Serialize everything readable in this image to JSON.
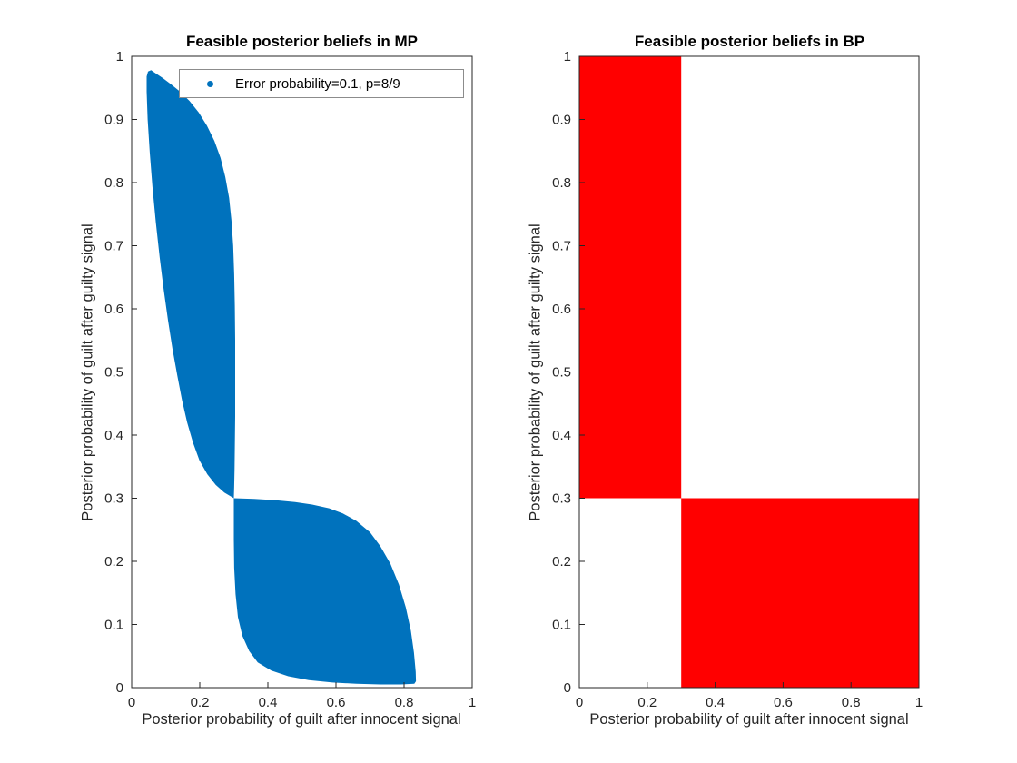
{
  "figure": {
    "background": "#ffffff"
  },
  "style": {
    "axis_color": "#262626",
    "title_color": "#000000",
    "mp_region_color": "#0072BD",
    "bp_region_color": "#FF0000"
  },
  "chart_data": [
    {
      "id": "mp",
      "type": "area",
      "title": "Feasible posterior beliefs in MP",
      "xlabel": "Posterior probability of guilt after innocent signal",
      "ylabel": "Posterior probability of guilt after guilty signal",
      "xlim": [
        0,
        1
      ],
      "ylim": [
        0,
        1
      ],
      "grid": false,
      "legend": {
        "position": "north-inside",
        "entries": [
          {
            "label": "Error probability=0.1, p=8/9",
            "marker": "dot",
            "color": "#0072BD"
          }
        ]
      },
      "xticks": {
        "values": [
          0,
          0.2,
          0.4,
          0.6,
          0.8,
          1
        ],
        "labels": [
          "0",
          "0.2",
          "0.4",
          "0.6",
          "0.8",
          "1"
        ]
      },
      "yticks": {
        "values": [
          0,
          0.1,
          0.2,
          0.3,
          0.4,
          0.5,
          0.6,
          0.7,
          0.8,
          0.9,
          1
        ],
        "labels": [
          "0",
          "0.1",
          "0.2",
          "0.3",
          "0.4",
          "0.5",
          "0.6",
          "0.7",
          "0.8",
          "0.9",
          "1"
        ]
      },
      "region_color": "#0072BD",
      "region_description": "Filled feasible set of posterior pairs; pinch point at (0.3, 0.3); upper lobe spans x 0.045-0.30 / y 0.30-0.98; lower lobe spans x 0.30-0.835 / y 0-0.30",
      "region_boundary": [
        [
          0.3,
          0.3
        ],
        [
          0.36,
          0.299
        ],
        [
          0.42,
          0.297
        ],
        [
          0.48,
          0.294
        ],
        [
          0.53,
          0.29
        ],
        [
          0.58,
          0.284
        ],
        [
          0.62,
          0.276
        ],
        [
          0.66,
          0.264
        ],
        [
          0.7,
          0.246
        ],
        [
          0.73,
          0.224
        ],
        [
          0.76,
          0.196
        ],
        [
          0.785,
          0.163
        ],
        [
          0.805,
          0.127
        ],
        [
          0.82,
          0.09
        ],
        [
          0.829,
          0.055
        ],
        [
          0.834,
          0.025
        ],
        [
          0.835,
          0.01
        ],
        [
          0.83,
          0.006
        ],
        [
          0.79,
          0.005
        ],
        [
          0.73,
          0.005
        ],
        [
          0.66,
          0.006
        ],
        [
          0.59,
          0.008
        ],
        [
          0.52,
          0.012
        ],
        [
          0.46,
          0.018
        ],
        [
          0.41,
          0.027
        ],
        [
          0.37,
          0.04
        ],
        [
          0.345,
          0.058
        ],
        [
          0.325,
          0.082
        ],
        [
          0.312,
          0.112
        ],
        [
          0.305,
          0.148
        ],
        [
          0.301,
          0.19
        ],
        [
          0.3,
          0.235
        ],
        [
          0.3,
          0.27
        ],
        [
          0.3,
          0.3
        ],
        [
          0.272,
          0.309
        ],
        [
          0.247,
          0.321
        ],
        [
          0.222,
          0.338
        ],
        [
          0.199,
          0.36
        ],
        [
          0.18,
          0.388
        ],
        [
          0.163,
          0.42
        ],
        [
          0.148,
          0.455
        ],
        [
          0.134,
          0.494
        ],
        [
          0.12,
          0.536
        ],
        [
          0.107,
          0.581
        ],
        [
          0.094,
          0.63
        ],
        [
          0.082,
          0.682
        ],
        [
          0.071,
          0.737
        ],
        [
          0.061,
          0.793
        ],
        [
          0.053,
          0.848
        ],
        [
          0.047,
          0.9
        ],
        [
          0.044,
          0.944
        ],
        [
          0.044,
          0.968
        ],
        [
          0.048,
          0.976
        ],
        [
          0.057,
          0.978
        ],
        [
          0.068,
          0.974
        ],
        [
          0.09,
          0.966
        ],
        [
          0.115,
          0.956
        ],
        [
          0.142,
          0.944
        ],
        [
          0.17,
          0.929
        ],
        [
          0.197,
          0.911
        ],
        [
          0.221,
          0.89
        ],
        [
          0.243,
          0.866
        ],
        [
          0.261,
          0.839
        ],
        [
          0.275,
          0.809
        ],
        [
          0.286,
          0.776
        ],
        [
          0.293,
          0.74
        ],
        [
          0.298,
          0.7
        ],
        [
          0.301,
          0.655
        ],
        [
          0.303,
          0.605
        ],
        [
          0.304,
          0.55
        ],
        [
          0.304,
          0.49
        ],
        [
          0.304,
          0.43
        ],
        [
          0.303,
          0.38
        ],
        [
          0.302,
          0.345
        ],
        [
          0.301,
          0.318
        ]
      ]
    },
    {
      "id": "bp",
      "type": "area",
      "title": "Feasible posterior beliefs in BP",
      "xlabel": "Posterior probability of guilt after innocent signal",
      "ylabel": "Posterior probability of guilt after guilty signal",
      "xlim": [
        0,
        1
      ],
      "ylim": [
        0,
        1
      ],
      "grid": false,
      "xticks": {
        "values": [
          0,
          0.2,
          0.4,
          0.6,
          0.8,
          1
        ],
        "labels": [
          "0",
          "0.2",
          "0.4",
          "0.6",
          "0.8",
          "1"
        ]
      },
      "yticks": {
        "values": [
          0,
          0.1,
          0.2,
          0.3,
          0.4,
          0.5,
          0.6,
          0.7,
          0.8,
          0.9,
          1
        ],
        "labels": [
          "0",
          "0.1",
          "0.2",
          "0.3",
          "0.4",
          "0.5",
          "0.6",
          "0.7",
          "0.8",
          "0.9",
          "1"
        ]
      },
      "region_color": "#FF0000",
      "region_description": "Two solid red rectangles: upper-left block x 0-0.3 / y 0.3-1, lower-right block x 0.3-1 / y 0-0.3",
      "rects": [
        {
          "x0": 0.0,
          "x1": 0.3,
          "y0": 0.3,
          "y1": 1.0
        },
        {
          "x0": 0.3,
          "x1": 1.0,
          "y0": 0.0,
          "y1": 0.3
        }
      ]
    }
  ]
}
